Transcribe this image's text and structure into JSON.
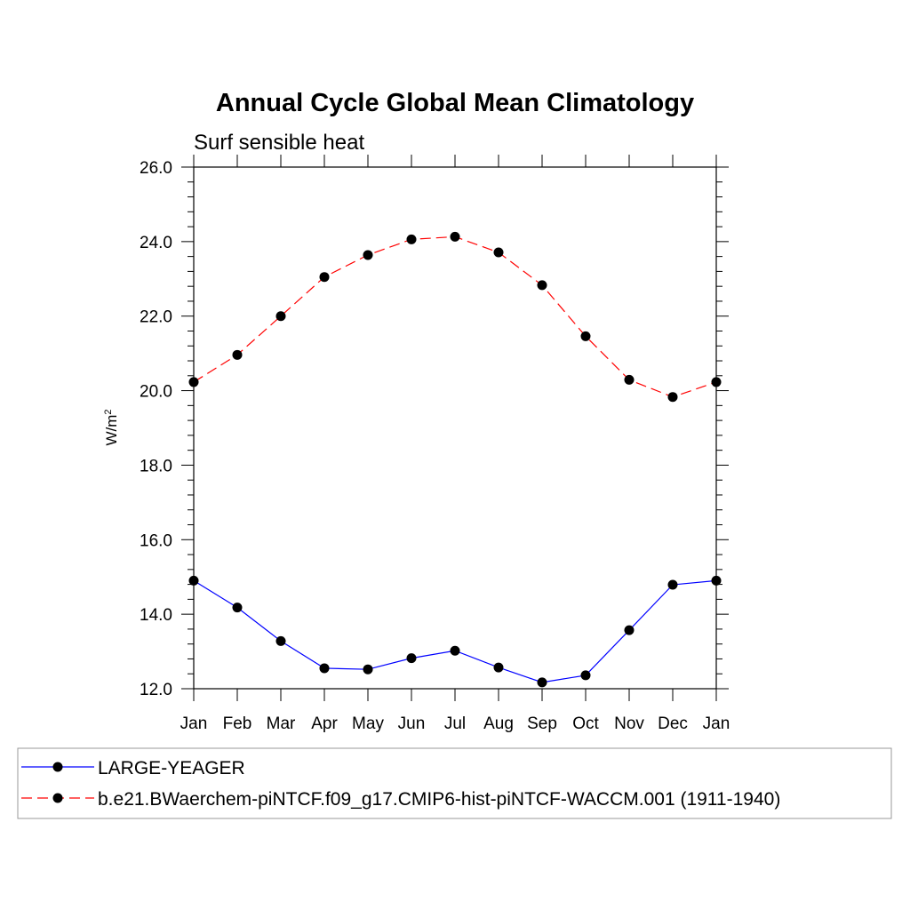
{
  "chart_data": {
    "type": "line",
    "title": "Annual Cycle Global Mean Climatology",
    "subtitle": "Surf sensible heat",
    "ylabel": "W/m",
    "ylabel_sup": "2",
    "xlabel": "",
    "categories": [
      "Jan",
      "Feb",
      "Mar",
      "Apr",
      "May",
      "Jun",
      "Jul",
      "Aug",
      "Sep",
      "Oct",
      "Nov",
      "Dec",
      "Jan"
    ],
    "ylim": [
      12.0,
      26.0
    ],
    "yticks": [
      12.0,
      14.0,
      16.0,
      18.0,
      20.0,
      22.0,
      24.0,
      26.0
    ],
    "ytick_labels": [
      "12.0",
      "14.0",
      "16.0",
      "18.0",
      "20.0",
      "22.0",
      "24.0",
      "26.0"
    ],
    "grid": false,
    "legend_position": "bottom",
    "series": [
      {
        "name": "LARGE-YEAGER",
        "color": "#0000ff",
        "dash": "solid",
        "marker": "circle",
        "values": [
          14.9,
          14.18,
          13.28,
          12.55,
          12.52,
          12.82,
          13.02,
          12.57,
          12.17,
          12.36,
          13.57,
          14.79,
          14.9
        ]
      },
      {
        "name": "b.e21.BWaerchem-piNTCF.f09_g17.CMIP6-hist-piNTCF-WACCM.001 (1911-1940)",
        "color": "#ff0000",
        "dash": "dashed",
        "marker": "circle",
        "values": [
          20.23,
          20.96,
          22.0,
          23.05,
          23.64,
          24.06,
          24.13,
          23.71,
          22.83,
          21.46,
          20.29,
          19.83,
          20.23
        ]
      }
    ]
  }
}
